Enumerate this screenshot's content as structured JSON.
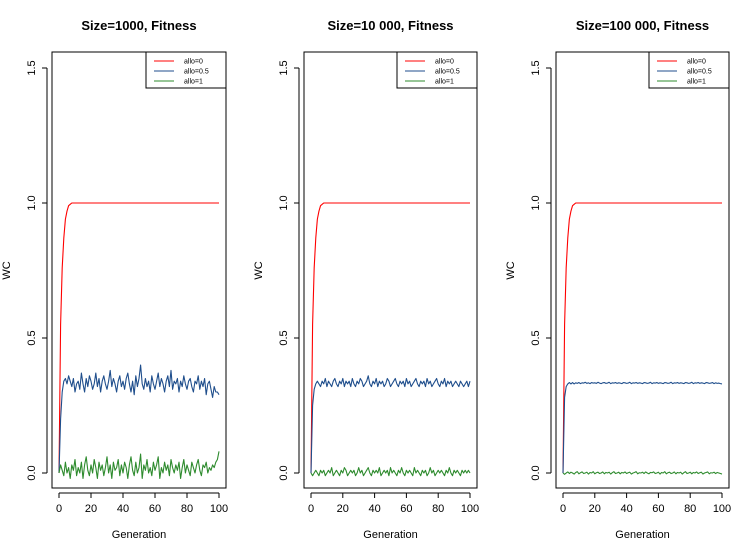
{
  "chart_data": [
    {
      "type": "line",
      "title": "Size=1000, Fitness",
      "xlabel": "Generation",
      "ylabel": "WC",
      "xlim": [
        -3,
        103
      ],
      "ylim": [
        -0.03,
        1.6
      ],
      "xticks": [
        "0",
        "20",
        "40",
        "60",
        "80",
        "100"
      ],
      "yticks": [
        "0.0",
        "0.5",
        "1.0",
        "1.5"
      ],
      "legend": "top-right",
      "series": [
        {
          "name": "allo=0",
          "color": "#ff0000",
          "x": [
            0,
            1,
            2,
            3,
            4,
            5,
            6,
            7,
            8,
            10,
            15,
            20,
            40,
            60,
            80,
            100
          ],
          "values": [
            0.0,
            0.55,
            0.76,
            0.87,
            0.94,
            0.97,
            0.99,
            0.995,
            1.0,
            1.0,
            1.0,
            1.0,
            1.0,
            1.0,
            1.0,
            1.0
          ]
        },
        {
          "name": "allo=0.5",
          "color": "#1f4e8c",
          "start": 0,
          "values": [
            0.0,
            0.2,
            0.3,
            0.34,
            0.35,
            0.33,
            0.36,
            0.34,
            0.32,
            0.35,
            0.3,
            0.33,
            0.34,
            0.31,
            0.37,
            0.33,
            0.3,
            0.35,
            0.32,
            0.36,
            0.34,
            0.31,
            0.33,
            0.37,
            0.32,
            0.35,
            0.3,
            0.34,
            0.36,
            0.33,
            0.31,
            0.34,
            0.38,
            0.32,
            0.35,
            0.33,
            0.3,
            0.34,
            0.36,
            0.32,
            0.34,
            0.31,
            0.35,
            0.37,
            0.33,
            0.3,
            0.34,
            0.29,
            0.36,
            0.32,
            0.35,
            0.4,
            0.33,
            0.31,
            0.35,
            0.32,
            0.34,
            0.3,
            0.36,
            0.33,
            0.31,
            0.34,
            0.37,
            0.32,
            0.35,
            0.33,
            0.3,
            0.34,
            0.36,
            0.32,
            0.38,
            0.31,
            0.34,
            0.33,
            0.35,
            0.3,
            0.34,
            0.32,
            0.36,
            0.33,
            0.31,
            0.34,
            0.35,
            0.32,
            0.3,
            0.34,
            0.33,
            0.36,
            0.31,
            0.34,
            0.32,
            0.35,
            0.29,
            0.33,
            0.34,
            0.31,
            0.28,
            0.32,
            0.3,
            0.3,
            0.29
          ]
        },
        {
          "name": "allo=1",
          "color": "#2e8b2e",
          "start": 0,
          "values": [
            0.0,
            0.03,
            0.01,
            -0.01,
            0.04,
            0.0,
            0.02,
            -0.02,
            0.03,
            0.01,
            0.05,
            -0.01,
            0.02,
            0.0,
            0.04,
            -0.02,
            0.03,
            0.06,
            0.01,
            -0.01,
            0.03,
            0.0,
            0.05,
            0.02,
            -0.02,
            0.04,
            0.01,
            0.03,
            -0.01,
            0.02,
            0.06,
            0.0,
            0.03,
            -0.02,
            0.04,
            0.01,
            0.02,
            0.05,
            -0.01,
            0.03,
            0.0,
            0.04,
            0.02,
            -0.02,
            0.03,
            0.06,
            0.01,
            -0.01,
            0.04,
            0.0,
            0.02,
            0.07,
            -0.02,
            0.03,
            0.01,
            0.05,
            0.0,
            0.02,
            -0.01,
            0.04,
            0.01,
            0.03,
            0.06,
            -0.02,
            0.02,
            0.0,
            0.04,
            0.01,
            0.03,
            -0.01,
            0.05,
            0.02,
            0.0,
            0.03,
            0.01,
            0.04,
            -0.02,
            0.02,
            0.05,
            0.0,
            0.03,
            0.01,
            -0.01,
            0.04,
            0.02,
            0.0,
            0.03,
            0.05,
            0.01,
            -0.01,
            0.03,
            0.02,
            0.04,
            0.0,
            0.02,
            0.01,
            0.03,
            0.02,
            0.04,
            0.05,
            0.08
          ]
        }
      ]
    },
    {
      "type": "line",
      "title": "Size=10 000, Fitness",
      "xlabel": "Generation",
      "ylabel": "WC",
      "xlim": [
        -3,
        103
      ],
      "ylim": [
        -0.03,
        1.6
      ],
      "xticks": [
        "0",
        "20",
        "40",
        "60",
        "80",
        "100"
      ],
      "yticks": [
        "0.0",
        "0.5",
        "1.0",
        "1.5"
      ],
      "legend": "top-right",
      "series": [
        {
          "name": "allo=0",
          "color": "#ff0000",
          "x": [
            0,
            1,
            2,
            3,
            4,
            5,
            6,
            7,
            8,
            10,
            15,
            20,
            40,
            60,
            80,
            100
          ],
          "values": [
            0.0,
            0.55,
            0.76,
            0.87,
            0.94,
            0.97,
            0.99,
            0.995,
            1.0,
            1.0,
            1.0,
            1.0,
            1.0,
            1.0,
            1.0,
            1.0
          ]
        },
        {
          "name": "allo=0.5",
          "color": "#1f4e8c",
          "start": 0,
          "values": [
            0.0,
            0.25,
            0.31,
            0.33,
            0.34,
            0.33,
            0.32,
            0.34,
            0.33,
            0.35,
            0.32,
            0.34,
            0.33,
            0.32,
            0.34,
            0.35,
            0.33,
            0.32,
            0.34,
            0.33,
            0.35,
            0.32,
            0.34,
            0.33,
            0.34,
            0.32,
            0.35,
            0.33,
            0.32,
            0.34,
            0.33,
            0.35,
            0.34,
            0.32,
            0.33,
            0.34,
            0.36,
            0.33,
            0.32,
            0.34,
            0.33,
            0.35,
            0.32,
            0.34,
            0.33,
            0.34,
            0.32,
            0.33,
            0.35,
            0.34,
            0.32,
            0.33,
            0.34,
            0.35,
            0.33,
            0.32,
            0.34,
            0.33,
            0.34,
            0.32,
            0.35,
            0.33,
            0.34,
            0.32,
            0.33,
            0.34,
            0.35,
            0.33,
            0.32,
            0.34,
            0.33,
            0.34,
            0.32,
            0.35,
            0.33,
            0.34,
            0.32,
            0.33,
            0.34,
            0.35,
            0.33,
            0.32,
            0.34,
            0.33,
            0.35,
            0.32,
            0.34,
            0.33,
            0.34,
            0.32,
            0.33,
            0.34,
            0.33,
            0.32,
            0.34,
            0.33,
            0.32,
            0.33,
            0.34,
            0.32,
            0.34
          ]
        },
        {
          "name": "allo=1",
          "color": "#2e8b2e",
          "start": 0,
          "values": [
            0.0,
            -0.01,
            0.0,
            0.01,
            0.0,
            -0.01,
            0.01,
            0.0,
            0.01,
            -0.01,
            0.0,
            0.01,
            0.0,
            0.02,
            -0.01,
            0.0,
            0.01,
            0.0,
            -0.01,
            0.01,
            0.0,
            0.02,
            0.01,
            -0.01,
            0.0,
            0.01,
            0.0,
            0.01,
            -0.01,
            0.0,
            0.02,
            0.0,
            0.01,
            -0.01,
            0.0,
            0.01,
            0.02,
            0.0,
            -0.01,
            0.01,
            0.0,
            0.01,
            0.0,
            0.02,
            -0.01,
            0.0,
            0.01,
            0.0,
            0.01,
            -0.01,
            0.02,
            0.0,
            0.01,
            0.0,
            -0.01,
            0.01,
            0.0,
            0.02,
            0.0,
            -0.01,
            0.01,
            0.0,
            0.01,
            0.0,
            -0.01,
            0.02,
            0.0,
            0.01,
            0.0,
            -0.01,
            0.01,
            0.0,
            0.01,
            -0.01,
            0.0,
            0.02,
            0.0,
            0.01,
            -0.01,
            0.0,
            0.01,
            0.0,
            0.01,
            0.0,
            -0.01,
            0.01,
            0.0,
            0.02,
            0.0,
            -0.01,
            0.01,
            0.0,
            0.01,
            0.0,
            -0.01,
            0.01,
            0.0,
            0.01,
            0.0,
            0.01,
            0.0
          ]
        }
      ]
    },
    {
      "type": "line",
      "title": "Size=100 000, Fitness",
      "xlabel": "Generation",
      "ylabel": "WC",
      "xlim": [
        -3,
        103
      ],
      "ylim": [
        -0.03,
        1.6
      ],
      "xticks": [
        "0",
        "20",
        "40",
        "60",
        "80",
        "100"
      ],
      "yticks": [
        "0.0",
        "0.5",
        "1.0",
        "1.5"
      ],
      "legend": "top-right",
      "series": [
        {
          "name": "allo=0",
          "color": "#ff0000",
          "x": [
            0,
            1,
            2,
            3,
            4,
            5,
            6,
            7,
            8,
            10,
            15,
            20,
            40,
            60,
            80,
            100
          ],
          "values": [
            0.0,
            0.55,
            0.76,
            0.87,
            0.94,
            0.97,
            0.99,
            0.995,
            1.0,
            1.0,
            1.0,
            1.0,
            1.0,
            1.0,
            1.0,
            1.0
          ]
        },
        {
          "name": "allo=0.5",
          "color": "#1f4e8c",
          "start": 0,
          "values": [
            0.0,
            0.28,
            0.32,
            0.33,
            0.335,
            0.33,
            0.335,
            0.33,
            0.334,
            0.332,
            0.335,
            0.331,
            0.334,
            0.333,
            0.336,
            0.332,
            0.334,
            0.331,
            0.335,
            0.333,
            0.334,
            0.332,
            0.336,
            0.333,
            0.331,
            0.334,
            0.335,
            0.332,
            0.333,
            0.336,
            0.331,
            0.334,
            0.333,
            0.335,
            0.332,
            0.334,
            0.333,
            0.331,
            0.335,
            0.334,
            0.332,
            0.333,
            0.336,
            0.331,
            0.334,
            0.333,
            0.335,
            0.332,
            0.334,
            0.333,
            0.331,
            0.335,
            0.334,
            0.332,
            0.333,
            0.336,
            0.331,
            0.334,
            0.333,
            0.335,
            0.332,
            0.334,
            0.333,
            0.331,
            0.335,
            0.334,
            0.332,
            0.333,
            0.336,
            0.331,
            0.334,
            0.333,
            0.335,
            0.332,
            0.334,
            0.333,
            0.331,
            0.335,
            0.334,
            0.332,
            0.333,
            0.336,
            0.331,
            0.334,
            0.333,
            0.335,
            0.332,
            0.334,
            0.333,
            0.331,
            0.335,
            0.334,
            0.332,
            0.333,
            0.335,
            0.331,
            0.334,
            0.332,
            0.333,
            0.331,
            0.33
          ]
        },
        {
          "name": "allo=1",
          "color": "#2e8b2e",
          "start": 0,
          "values": [
            0.0,
            -0.005,
            0.0,
            0.004,
            -0.002,
            0.003,
            0.0,
            -0.004,
            0.002,
            0.005,
            -0.003,
            0.001,
            0.004,
            -0.002,
            0.0,
            0.003,
            -0.004,
            0.002,
            0.0,
            0.005,
            -0.003,
            0.001,
            0.003,
            -0.002,
            0.0,
            0.004,
            -0.003,
            0.002,
            0.0,
            0.003,
            -0.004,
            0.001,
            0.005,
            -0.002,
            0.0,
            0.003,
            -0.003,
            0.002,
            0.0,
            0.004,
            -0.002,
            0.001,
            0.003,
            -0.004,
            0.0,
            0.002,
            0.005,
            -0.003,
            0.001,
            0.0,
            0.003,
            -0.002,
            0.004,
            0.0,
            -0.003,
            0.002,
            0.001,
            0.004,
            -0.002,
            0.0,
            0.003,
            -0.004,
            0.002,
            0.0,
            0.005,
            -0.003,
            0.001,
            0.003,
            -0.002,
            0.0,
            0.004,
            -0.003,
            0.002,
            0.0,
            0.003,
            -0.004,
            0.001,
            0.005,
            -0.002,
            0.0,
            0.003,
            -0.003,
            0.002,
            0.0,
            0.004,
            -0.002,
            0.001,
            0.003,
            -0.004,
            0.0,
            0.002,
            0.004,
            -0.003,
            0.001,
            0.0,
            0.003,
            -0.002,
            0.002,
            0.0,
            -0.002,
            -0.004
          ]
        }
      ]
    }
  ]
}
